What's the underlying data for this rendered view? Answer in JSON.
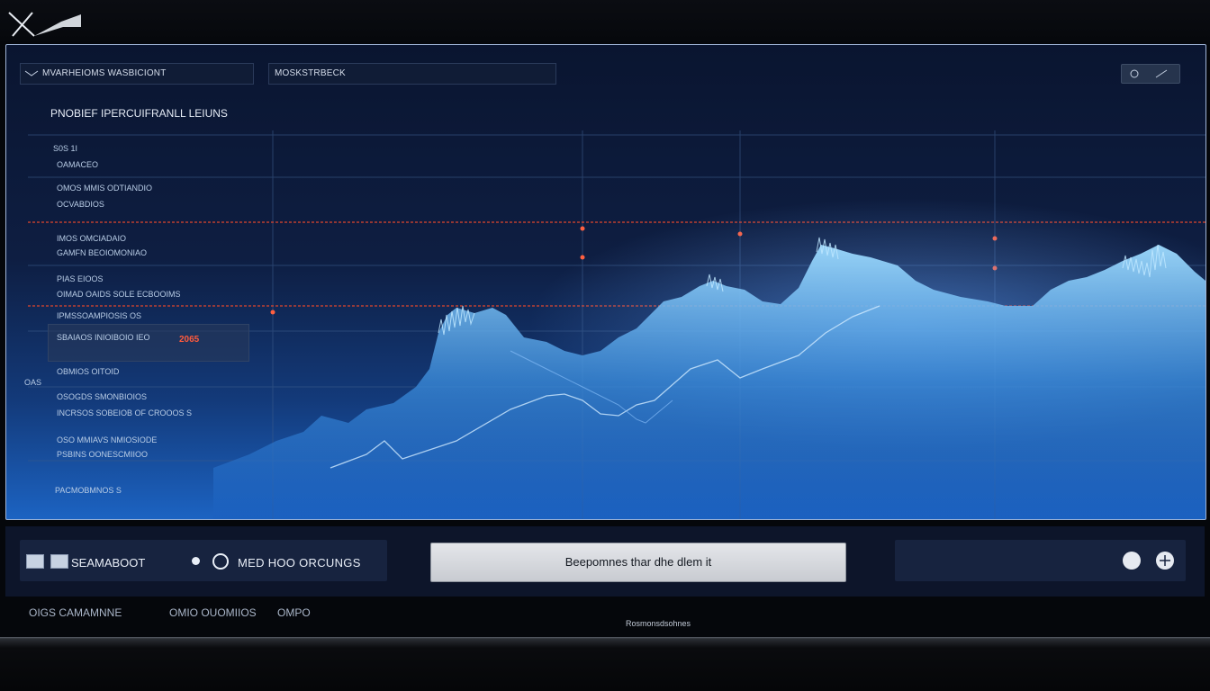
{
  "header": {
    "logo": "logo-mark"
  },
  "panel": {
    "field1": "MVARHEIOMS WASBICIONT",
    "field2": "MOSKSTRBECK",
    "title": "PNOBIEF IPERCUIFRANLL LEIUNS",
    "legend": [
      "S0S 1I",
      "OAMACEO",
      "OMOS MMIS ODTIANDIO",
      "OCVABDIOS",
      "IMOS OMCIADAIO",
      "GAMFN BEOIOMONIAO",
      "PIAS EIOOS",
      "OIMAD OAIDS SOLE ECBOOIMS",
      "IPMSSOAMPIOSIS OS",
      "SBAIAOS INIOIBOIO IEO",
      "OBMIOS OITOID",
      "OSOGDS SMONBIOIOS",
      "INCRSOS SOBEIOB OF CROOOS S",
      "OSO MMIAVS NMIOSIODE",
      "PSBINS OONESCMIIOO",
      "PACMOBMNOS S"
    ],
    "highlight": "2065",
    "side_left": "OAS"
  },
  "controls": {
    "label1": "SEAMABOOT",
    "label2": "MED HOO ORCUNGS",
    "main_button": "Beepomnes thar dhe dlem it"
  },
  "footer": {
    "item1": "OIGS CAMAMNNE",
    "item2": "OMIO OUOMIIOS",
    "item3": "OMPO",
    "center": "Rosmonsdsohnes"
  }
}
